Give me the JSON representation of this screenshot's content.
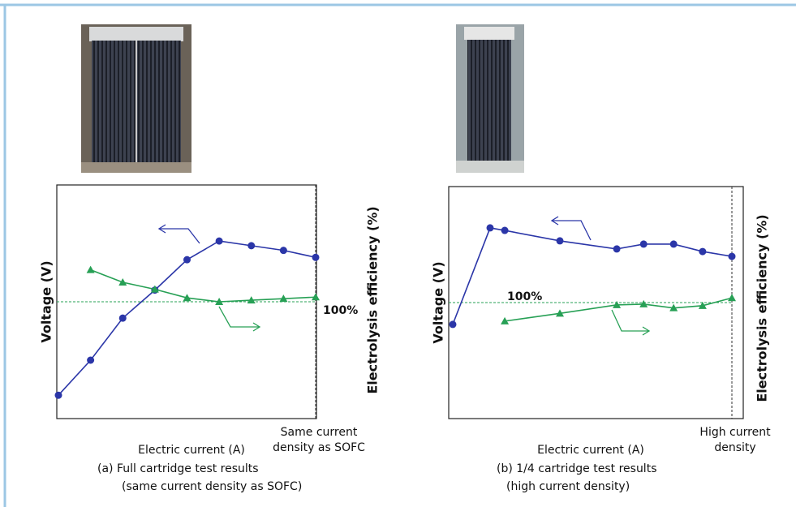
{
  "chart_data": [
    {
      "type": "line",
      "x": [
        0,
        1,
        2,
        3,
        4,
        5,
        6,
        7,
        8
      ],
      "xlim": [
        0,
        8
      ],
      "ylim": [
        0,
        100
      ],
      "y2lim": [
        85,
        115
      ],
      "xlabel": "Electric current (A)",
      "ylabel": "Voltage (V)",
      "y2label": "Electrolysis efficiency (%)",
      "series": [
        {
          "color": "#2b36a8",
          "values": [
            10,
            25,
            43,
            55,
            68,
            76,
            74,
            72,
            69
          ]
        },
        {
          "color": "#27a055",
          "axis": "y2",
          "values": [
            null,
            104.1,
            102.5,
            101.6,
            100.5,
            100.0,
            100.2,
            100.4,
            100.6
          ]
        }
      ],
      "reference_line": {
        "value": 100,
        "label": "100%",
        "axis": "y2"
      },
      "annotation": {
        "x": 8,
        "lines": [
          "Same current",
          "density as SOFC"
        ]
      },
      "caption": [
        "(a) Full cartridge test results",
        "(same current density as SOFC)"
      ]
    },
    {
      "type": "line",
      "x": [
        0,
        1.07,
        1.49,
        3.07,
        4.7,
        5.47,
        6.33,
        7.16,
        8
      ],
      "xlim": [
        0,
        8
      ],
      "ylim": [
        0,
        100
      ],
      "y2lim": [
        85,
        115
      ],
      "xlabel": "Electric current (A)",
      "ylabel": "Voltage (V)",
      "y2label": "Electrolysis efficiency (%)",
      "series": [
        {
          "color": "#2b36a8",
          "values": [
            40.6,
            82.2,
            81.1,
            76.6,
            73.1,
            75.2,
            75.2,
            72.0,
            69.9
          ]
        },
        {
          "color": "#27a055",
          "axis": "y2",
          "values": [
            null,
            null,
            97.6,
            98.6,
            99.7,
            99.8,
            99.3,
            99.6,
            100.6
          ]
        }
      ],
      "reference_line": {
        "value": 100,
        "label": "100%",
        "axis": "y2"
      },
      "annotation": {
        "x": 8,
        "lines": [
          "High current",
          "density"
        ]
      },
      "caption": [
        "(b) 1/4 cartridge test results",
        "(high current density)"
      ]
    }
  ]
}
